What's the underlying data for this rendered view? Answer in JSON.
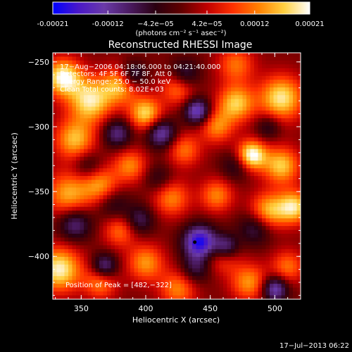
{
  "chart_data": {
    "type": "heatmap",
    "title": "Reconstructed RHESSI Image",
    "xlabel": "Heliocentric X (arcsec)",
    "ylabel": "Heliocentric Y (arcsec)",
    "xlim": [
      328,
      520
    ],
    "ylim": [
      -433,
      -243
    ],
    "x_ticks": [
      350,
      400,
      450,
      500
    ],
    "y_ticks": [
      -400,
      -350,
      -300,
      -250
    ],
    "colorbar": {
      "range": [
        -0.00021,
        0.00021
      ],
      "tick_values": [
        -0.00021,
        -0.00012,
        -4.2e-05,
        4.2e-05,
        0.00012,
        0.00021
      ],
      "tick_labels": [
        "-0.00021",
        "-0.00012",
        "−4.2e−05",
        "4.2e−05",
        "0.00012",
        "0.00021"
      ],
      "units": "(photons cm⁻² s⁻¹ asec⁻²)",
      "colors": [
        "#0000ff",
        "#4a18c8",
        "#6a3aa8",
        "#4a1a60",
        "#2a0010",
        "#600000",
        "#c00000",
        "#ff3000",
        "#ff8000",
        "#ffd040",
        "#ffffff"
      ]
    },
    "annotations": [
      "17−Aug−2006 04:18:06.000 to 04:21:40.000",
      "Detectors: 4F 5F 6F 7F 8F, Att 0",
      "Energy Range: 25.0 − 50.0 keV",
      "Clean     Total counts: 8.02E+03"
    ],
    "peak_label": "Position of Peak = [482,−322]",
    "marker": {
      "x": 438,
      "y": -389
    },
    "intensity_blobs": [
      {
        "x": 336,
        "y": -262,
        "v": 0.95,
        "s": 10
      },
      {
        "x": 357,
        "y": -280,
        "v": 0.85,
        "s": 12
      },
      {
        "x": 380,
        "y": -268,
        "v": 0.65,
        "s": 10
      },
      {
        "x": 345,
        "y": -310,
        "v": 0.7,
        "s": 11
      },
      {
        "x": 340,
        "y": -352,
        "v": 0.65,
        "s": 12
      },
      {
        "x": 365,
        "y": -345,
        "v": 0.6,
        "s": 10
      },
      {
        "x": 388,
        "y": -330,
        "v": 0.55,
        "s": 9
      },
      {
        "x": 400,
        "y": -290,
        "v": 0.8,
        "s": 9
      },
      {
        "x": 425,
        "y": -270,
        "v": 0.55,
        "s": 9
      },
      {
        "x": 470,
        "y": -252,
        "v": 0.5,
        "s": 10
      },
      {
        "x": 505,
        "y": -278,
        "v": 0.85,
        "s": 12
      },
      {
        "x": 470,
        "y": -282,
        "v": 0.75,
        "s": 10
      },
      {
        "x": 482,
        "y": -322,
        "v": 1.0,
        "s": 8
      },
      {
        "x": 505,
        "y": -330,
        "v": 0.75,
        "s": 10
      },
      {
        "x": 455,
        "y": -300,
        "v": 0.55,
        "s": 9
      },
      {
        "x": 430,
        "y": -318,
        "v": 0.5,
        "s": 9
      },
      {
        "x": 420,
        "y": -355,
        "v": 0.55,
        "s": 10
      },
      {
        "x": 455,
        "y": -353,
        "v": 0.55,
        "s": 9
      },
      {
        "x": 495,
        "y": -365,
        "v": 0.7,
        "s": 10
      },
      {
        "x": 515,
        "y": -362,
        "v": 0.8,
        "s": 9
      },
      {
        "x": 380,
        "y": -380,
        "v": 0.5,
        "s": 9
      },
      {
        "x": 400,
        "y": -405,
        "v": 0.6,
        "s": 10
      },
      {
        "x": 425,
        "y": -425,
        "v": 0.55,
        "s": 10
      },
      {
        "x": 460,
        "y": -400,
        "v": 0.45,
        "s": 9
      },
      {
        "x": 480,
        "y": -420,
        "v": 0.6,
        "s": 10
      },
      {
        "x": 333,
        "y": -410,
        "v": 0.9,
        "s": 12
      },
      {
        "x": 365,
        "y": -420,
        "v": 0.55,
        "s": 9
      },
      {
        "x": 510,
        "y": -408,
        "v": 0.5,
        "s": 9
      },
      {
        "x": 442,
        "y": -389,
        "v": -1.0,
        "s": 9
      },
      {
        "x": 462,
        "y": -393,
        "v": -0.7,
        "s": 7
      },
      {
        "x": 412,
        "y": -305,
        "v": -0.7,
        "s": 8
      },
      {
        "x": 440,
        "y": -288,
        "v": -0.8,
        "s": 7
      },
      {
        "x": 378,
        "y": -305,
        "v": -0.55,
        "s": 8
      },
      {
        "x": 375,
        "y": -360,
        "v": -0.35,
        "s": 9
      },
      {
        "x": 395,
        "y": -372,
        "v": -0.45,
        "s": 8
      },
      {
        "x": 345,
        "y": -375,
        "v": -0.55,
        "s": 9
      },
      {
        "x": 368,
        "y": -408,
        "v": -0.65,
        "s": 7
      },
      {
        "x": 390,
        "y": -260,
        "v": -0.55,
        "s": 7
      },
      {
        "x": 430,
        "y": -260,
        "v": -0.5,
        "s": 8
      },
      {
        "x": 485,
        "y": -378,
        "v": -0.45,
        "s": 9
      },
      {
        "x": 500,
        "y": -425,
        "v": -0.75,
        "s": 7
      },
      {
        "x": 438,
        "y": -410,
        "v": -0.4,
        "s": 8
      },
      {
        "x": 470,
        "y": -330,
        "v": -0.35,
        "s": 8
      },
      {
        "x": 355,
        "y": -330,
        "v": -0.35,
        "s": 8
      },
      {
        "x": 495,
        "y": -300,
        "v": -0.35,
        "s": 7
      },
      {
        "x": 410,
        "y": -340,
        "v": -0.3,
        "s": 8
      }
    ]
  },
  "footer": {
    "timestamp": "17−Jul−2013 06:22"
  }
}
